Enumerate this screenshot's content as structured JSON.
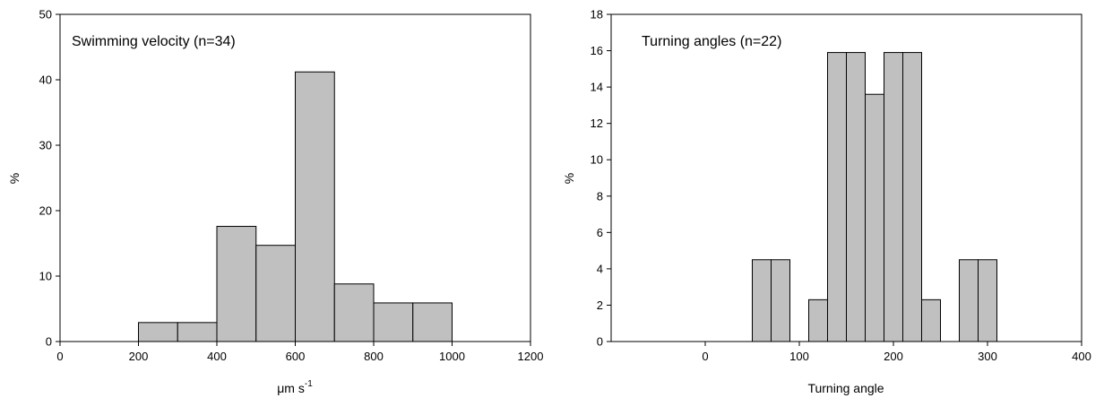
{
  "chart_data": [
    {
      "type": "bar",
      "annotation": "Swimming velocity (n=34)",
      "xlabel": "μm s",
      "xlabel_superscript": "-1",
      "ylabel": "%",
      "xlim": [
        0,
        1200
      ],
      "ylim": [
        0,
        50
      ],
      "xticks": [
        "0",
        "200",
        "400",
        "600",
        "800",
        "1000",
        "1200"
      ],
      "xtick_values": [
        0,
        200,
        400,
        600,
        800,
        1000,
        1200
      ],
      "yticks": [
        "0",
        "10",
        "20",
        "30",
        "40",
        "50"
      ],
      "ytick_values": [
        0,
        10,
        20,
        30,
        40,
        50
      ],
      "bins": [
        {
          "start": 200,
          "end": 300,
          "value": 2.9
        },
        {
          "start": 300,
          "end": 400,
          "value": 2.9
        },
        {
          "start": 400,
          "end": 500,
          "value": 17.6
        },
        {
          "start": 500,
          "end": 600,
          "value": 14.7
        },
        {
          "start": 600,
          "end": 700,
          "value": 41.2
        },
        {
          "start": 700,
          "end": 800,
          "value": 8.8
        },
        {
          "start": 800,
          "end": 900,
          "value": 5.9
        },
        {
          "start": 900,
          "end": 1000,
          "value": 5.9
        }
      ],
      "bar_color": "#c0c0c0",
      "grid": false
    },
    {
      "type": "bar",
      "annotation": "Turning angles (n=22)",
      "xlabel": "Turning angle",
      "ylabel": "%",
      "xlim": [
        -100,
        400
      ],
      "ylim": [
        0,
        18
      ],
      "xticks": [
        "0",
        "100",
        "200",
        "300",
        "400"
      ],
      "xtick_values": [
        0,
        100,
        200,
        300,
        400
      ],
      "yticks": [
        "0",
        "2",
        "4",
        "6",
        "8",
        "10",
        "12",
        "14",
        "16",
        "18"
      ],
      "ytick_values": [
        0,
        2,
        4,
        6,
        8,
        10,
        12,
        14,
        16,
        18
      ],
      "bins": [
        {
          "start": 50,
          "end": 70,
          "value": 4.5
        },
        {
          "start": 70,
          "end": 90,
          "value": 4.5
        },
        {
          "start": 110,
          "end": 130,
          "value": 2.3
        },
        {
          "start": 130,
          "end": 150,
          "value": 15.9
        },
        {
          "start": 150,
          "end": 170,
          "value": 15.9
        },
        {
          "start": 170,
          "end": 190,
          "value": 13.6
        },
        {
          "start": 190,
          "end": 210,
          "value": 15.9
        },
        {
          "start": 210,
          "end": 230,
          "value": 15.9
        },
        {
          "start": 230,
          "end": 250,
          "value": 2.3
        },
        {
          "start": 270,
          "end": 290,
          "value": 4.5
        },
        {
          "start": 290,
          "end": 310,
          "value": 4.5
        }
      ],
      "bar_color": "#c0c0c0",
      "grid": false
    }
  ]
}
